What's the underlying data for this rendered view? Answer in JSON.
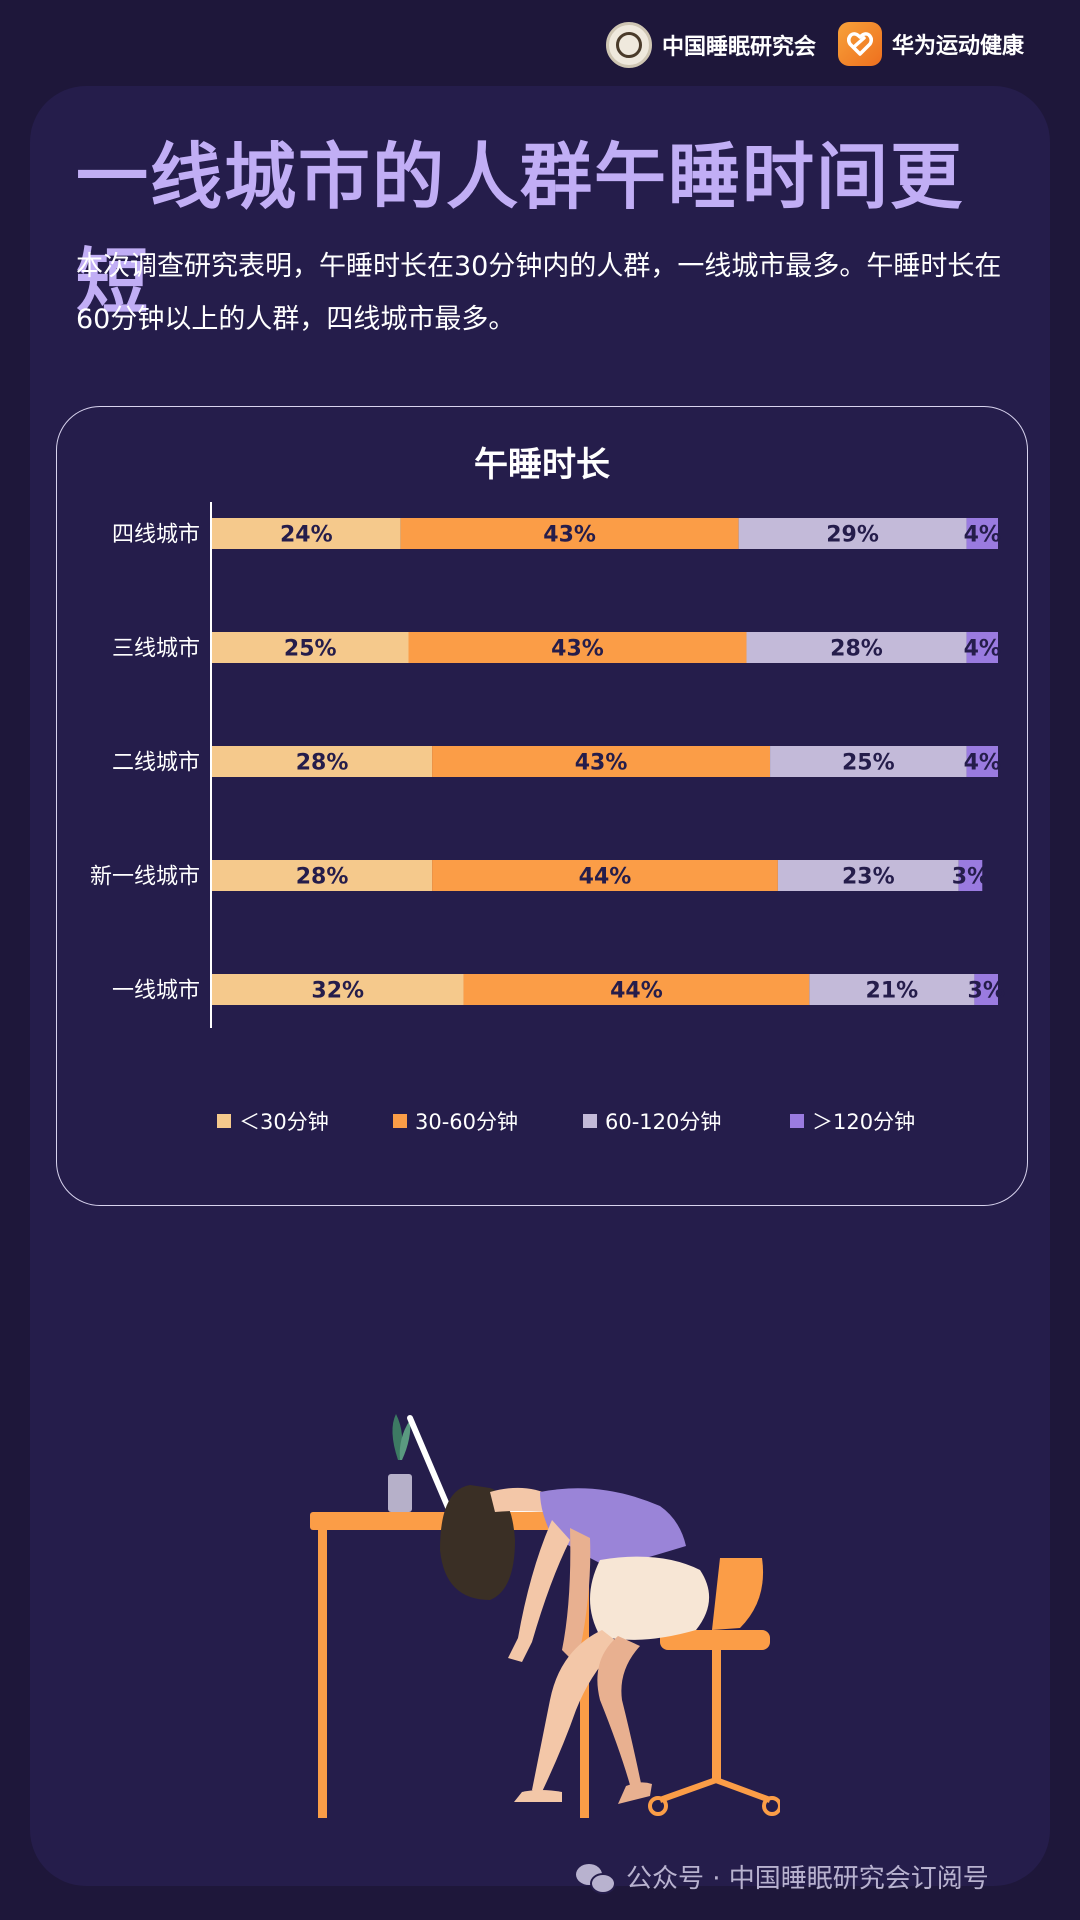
{
  "header": {
    "org1_name": "中国睡眠研究会",
    "org2_name": "华为运动健康",
    "org1_logo_icon": "seal-icon",
    "org2_logo_icon": "huawei-health-icon"
  },
  "title": "一线城市的人群午睡时间更短",
  "description": "本次调查研究表明，午睡时长在30分钟内的人群，一线城市最多。午睡时长在60分钟以上的人群，四线城市最多。",
  "chart_data": {
    "type": "bar",
    "orientation": "horizontal",
    "stacked": true,
    "title": "午睡时长",
    "unit": "%",
    "categories": [
      "四线城市",
      "三线城市",
      "二线城市",
      "新一线城市",
      "一线城市"
    ],
    "series": [
      {
        "name": "＜30分钟",
        "color": "#f5c98c",
        "values": [
          24,
          25,
          28,
          28,
          32
        ]
      },
      {
        "name": "30-60分钟",
        "color": "#fb9d47",
        "values": [
          43,
          43,
          43,
          44,
          44
        ]
      },
      {
        "name": "60-120分钟",
        "color": "#c3bad9",
        "values": [
          29,
          28,
          25,
          23,
          21
        ]
      },
      {
        "name": "＞120分钟",
        "color": "#9a7be0",
        "values": [
          4,
          4,
          4,
          3,
          3
        ]
      }
    ],
    "legend_position": "bottom",
    "grid": false
  },
  "footer": {
    "text": "公众号 · 中国睡眠研究会订阅号",
    "icon": "wechat-icon"
  },
  "colors": {
    "background": "#1e173a",
    "panel": "#251d4b",
    "title": "#c1aef5",
    "accent_orange": "#fb9d47"
  }
}
